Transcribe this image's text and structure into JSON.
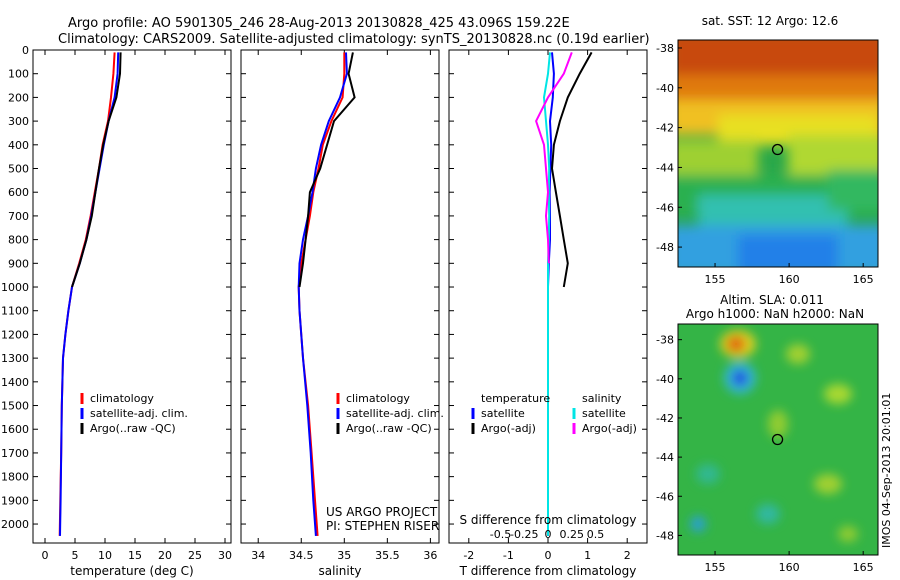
{
  "header": {
    "line1": "Argo profile: AO 5901305_246 28-Aug-2013 20130828_425 43.096S 159.22E",
    "line2": "Climatology: CARS2009. Satellite-adjusted climatology: synTS_20130828.nc (0.19d earlier)"
  },
  "credit": {
    "line1": "US ARGO PROJECT",
    "line2": "PI: STEPHEN RISER"
  },
  "watermark": "IMOS 04-Sep-2013 20:01:01",
  "colors": {
    "climatology": "#ff0000",
    "satellite": "#0000ff",
    "argo": "#000000",
    "sal_sat": "#00e5e5",
    "sal_argo": "#ff00ff"
  },
  "chart_data": [
    {
      "type": "line",
      "name": "temperature",
      "xlabel": "temperature (deg C)",
      "ylabel": "",
      "xlim": [
        -2,
        31
      ],
      "ylim": [
        2080,
        0
      ],
      "xticks": [
        0,
        5,
        10,
        15,
        20,
        25,
        30
      ],
      "yticks": [
        0,
        100,
        200,
        300,
        400,
        500,
        600,
        700,
        800,
        900,
        1000,
        1100,
        1200,
        1300,
        1400,
        1500,
        1600,
        1700,
        1800,
        1900,
        2000
      ],
      "legend": [
        "climatology",
        "satellite-adj. clim.",
        "Argo(..raw -QC)"
      ],
      "series": [
        {
          "name": "climatology",
          "color": "#ff0000",
          "x": [
            11.6,
            11.4,
            11.0,
            10.5,
            9.6,
            9.0,
            8.3,
            7.6,
            6.8,
            5.7,
            4.5,
            3.9,
            3.4,
            3.0,
            2.8,
            2.7,
            2.55,
            2.45
          ],
          "y": [
            10,
            100,
            200,
            300,
            400,
            500,
            600,
            700,
            800,
            900,
            1000,
            1100,
            1200,
            1300,
            1500,
            1700,
            1900,
            2050
          ]
        },
        {
          "name": "satellite-adj. clim.",
          "color": "#0000ff",
          "x": [
            12.2,
            12.1,
            11.6,
            10.6,
            9.8,
            9.1,
            8.4,
            7.7,
            6.9,
            5.8,
            4.5,
            3.9,
            3.4,
            3.0,
            2.8,
            2.7,
            2.6,
            2.5
          ],
          "y": [
            10,
            100,
            200,
            300,
            400,
            500,
            600,
            700,
            800,
            900,
            1000,
            1100,
            1200,
            1300,
            1500,
            1700,
            1900,
            2050
          ]
        },
        {
          "name": "Argo(..raw -QC)",
          "color": "#000000",
          "x": [
            12.6,
            12.5,
            11.9,
            10.6,
            9.7,
            9.0,
            8.4,
            7.8,
            6.9,
            5.8,
            4.5
          ],
          "y": [
            10,
            100,
            200,
            300,
            400,
            500,
            600,
            700,
            800,
            900,
            1000
          ]
        }
      ]
    },
    {
      "type": "line",
      "name": "salinity",
      "xlabel": "salinity",
      "xlim": [
        33.8,
        36.1
      ],
      "ylim": [
        2080,
        0
      ],
      "xticks": [
        34,
        34.5,
        35,
        35.5,
        36
      ],
      "legend": [
        "climatology",
        "satellite-adj. clim.",
        "Argo(..raw -QC)"
      ],
      "series": [
        {
          "name": "climatology",
          "color": "#ff0000",
          "x": [
            35.0,
            35.0,
            34.98,
            34.85,
            34.75,
            34.7,
            34.64,
            34.6,
            34.55,
            34.5,
            34.47,
            34.48,
            34.52,
            34.58,
            34.62,
            34.66,
            34.69
          ],
          "y": [
            10,
            100,
            200,
            300,
            400,
            500,
            600,
            700,
            800,
            900,
            1000,
            1100,
            1300,
            1500,
            1700,
            1900,
            2050
          ]
        },
        {
          "name": "satellite-adj. clim.",
          "color": "#0000ff",
          "x": [
            35.02,
            35.03,
            34.95,
            34.82,
            34.73,
            34.67,
            34.63,
            34.58,
            34.52,
            34.48,
            34.47,
            34.48,
            34.52,
            34.57,
            34.61,
            34.64,
            34.67
          ],
          "y": [
            10,
            100,
            200,
            300,
            400,
            500,
            600,
            700,
            800,
            900,
            1000,
            1100,
            1300,
            1500,
            1700,
            1900,
            2050
          ]
        },
        {
          "name": "Argo(..raw -QC)",
          "color": "#000000",
          "x": [
            35.1,
            35.05,
            35.12,
            34.88,
            34.8,
            34.72,
            34.6,
            34.58,
            34.55,
            34.52,
            34.48
          ],
          "y": [
            10,
            100,
            200,
            300,
            400,
            500,
            600,
            700,
            800,
            900,
            1000
          ]
        }
      ]
    },
    {
      "type": "line",
      "name": "difference",
      "xlabel": "T difference from climatology",
      "top_label": "S difference from climatology",
      "xlim": [
        -2.5,
        2.5
      ],
      "ylim": [
        2080,
        0
      ],
      "xticks": [
        -2,
        -1,
        0,
        1,
        2
      ],
      "top_ticks": [
        "-0.5",
        "-0.25",
        "0",
        "0.25",
        "0.5"
      ],
      "legend_temperature": [
        "temperature",
        "satellite",
        "Argo(-adj)"
      ],
      "legend_salinity": [
        "salinity",
        "satellite",
        "Argo(-adj)"
      ],
      "series": [
        {
          "name": "T satellite",
          "color": "#0000ff",
          "x": [
            0.1,
            0.15,
            0.12,
            0.05,
            0.08,
            0.06,
            0.04,
            0.05,
            0.05,
            0.02,
            0,
            0,
            0,
            0
          ],
          "y": [
            10,
            100,
            200,
            300,
            400,
            500,
            600,
            700,
            800,
            900,
            1000,
            1300,
            1700,
            2050
          ]
        },
        {
          "name": "T Argo(-adj)",
          "color": "#000000",
          "x": [
            1.1,
            0.8,
            0.5,
            0.3,
            0.15,
            0.1,
            0.2,
            0.3,
            0.4,
            0.5,
            0.4
          ],
          "y": [
            10,
            100,
            200,
            300,
            400,
            500,
            600,
            700,
            800,
            900,
            1000
          ]
        },
        {
          "name": "S satellite",
          "color": "#00e5e5",
          "x": [
            0.05,
            0.0,
            -0.1,
            -0.05,
            0,
            0.03,
            0.02,
            0.03,
            0.02,
            0,
            0,
            0
          ],
          "y": [
            10,
            100,
            200,
            300,
            400,
            500,
            600,
            700,
            800,
            900,
            1300,
            2050
          ]
        },
        {
          "name": "S Argo(-adj)",
          "color": "#ff00ff",
          "x": [
            0.6,
            0.4,
            0.0,
            -0.3,
            -0.1,
            -0.05,
            0.0,
            -0.05,
            0.0,
            0.02
          ],
          "y": [
            10,
            100,
            200,
            300,
            400,
            500,
            600,
            700,
            800,
            900
          ]
        }
      ]
    },
    {
      "type": "heatmap",
      "name": "sst-map",
      "title": "sat. SST: 12 Argo: 12.6",
      "xlim": [
        152.5,
        166
      ],
      "ylim": [
        -49,
        -37.6
      ],
      "xticks": [
        155,
        160,
        165
      ],
      "yticks": [
        -38,
        -40,
        -42,
        -44,
        -46,
        -48
      ],
      "marker": {
        "lon": 159.22,
        "lat": -43.1
      }
    },
    {
      "type": "heatmap",
      "name": "sla-map",
      "title_line1": "Altim. SLA: 0.011",
      "title_line2": "Argo h1000: NaN h2000: NaN",
      "xlim": [
        152.5,
        166
      ],
      "ylim": [
        -49,
        -37.2
      ],
      "xticks": [
        155,
        160,
        165
      ],
      "yticks": [
        -38,
        -40,
        -42,
        -44,
        -46,
        -48
      ],
      "marker": {
        "lon": 159.22,
        "lat": -43.1
      }
    }
  ]
}
